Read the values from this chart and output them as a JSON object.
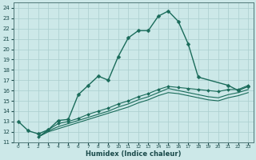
{
  "xlabel": "Humidex (Indice chaleur)",
  "ylabel": "",
  "bg_color": "#cce8e8",
  "grid_color": "#aacece",
  "line_color": "#1a6b5a",
  "xlim": [
    -0.5,
    23.5
  ],
  "ylim": [
    11,
    24.5
  ],
  "x_ticks": [
    0,
    1,
    2,
    3,
    4,
    5,
    6,
    7,
    8,
    9,
    10,
    11,
    12,
    13,
    14,
    15,
    16,
    17,
    18,
    19,
    20,
    21,
    22,
    23
  ],
  "y_ticks": [
    11,
    12,
    13,
    14,
    15,
    16,
    17,
    18,
    19,
    20,
    21,
    22,
    23,
    24
  ],
  "lines": [
    {
      "x": [
        0,
        1,
        2,
        3,
        4,
        5,
        6,
        7,
        8,
        9,
        10,
        11,
        12,
        13,
        14,
        15,
        16,
        17,
        18,
        21,
        22,
        23
      ],
      "y": [
        13.0,
        12.1,
        11.8,
        12.2,
        13.1,
        13.2,
        15.6,
        16.5,
        17.4,
        17.0,
        19.3,
        21.1,
        21.8,
        21.8,
        23.2,
        23.7,
        22.7,
        20.5,
        17.3,
        16.5,
        16.0,
        16.4
      ],
      "marker": "D",
      "markersize": 2.5,
      "linewidth": 1.0
    },
    {
      "x": [
        2,
        3,
        4,
        5,
        6,
        7,
        8,
        9,
        10,
        11,
        12,
        13,
        14,
        15,
        16,
        17,
        18,
        19,
        20,
        21,
        22,
        23
      ],
      "y": [
        11.5,
        12.2,
        12.8,
        13.0,
        13.3,
        13.7,
        14.0,
        14.3,
        14.7,
        15.0,
        15.4,
        15.7,
        16.1,
        16.4,
        16.3,
        16.2,
        16.1,
        16.0,
        15.9,
        16.1,
        16.1,
        16.5
      ],
      "marker": "D",
      "markersize": 2.0,
      "linewidth": 0.8
    },
    {
      "x": [
        2,
        3,
        4,
        5,
        6,
        7,
        8,
        9,
        10,
        11,
        12,
        13,
        14,
        15,
        16,
        17,
        18,
        19,
        20,
        21,
        22,
        23
      ],
      "y": [
        11.5,
        12.1,
        12.5,
        12.8,
        13.1,
        13.4,
        13.7,
        14.0,
        14.4,
        14.7,
        15.1,
        15.4,
        15.8,
        16.2,
        16.0,
        15.8,
        15.6,
        15.4,
        15.3,
        15.6,
        15.8,
        16.1
      ],
      "marker": null,
      "markersize": 0,
      "linewidth": 0.8
    },
    {
      "x": [
        2,
        3,
        4,
        5,
        6,
        7,
        8,
        9,
        10,
        11,
        12,
        13,
        14,
        15,
        16,
        17,
        18,
        19,
        20,
        21,
        22,
        23
      ],
      "y": [
        11.5,
        12.0,
        12.3,
        12.6,
        12.9,
        13.2,
        13.5,
        13.8,
        14.1,
        14.4,
        14.8,
        15.1,
        15.5,
        15.8,
        15.7,
        15.5,
        15.3,
        15.1,
        15.0,
        15.3,
        15.5,
        15.8
      ],
      "marker": null,
      "markersize": 0,
      "linewidth": 0.8
    }
  ]
}
